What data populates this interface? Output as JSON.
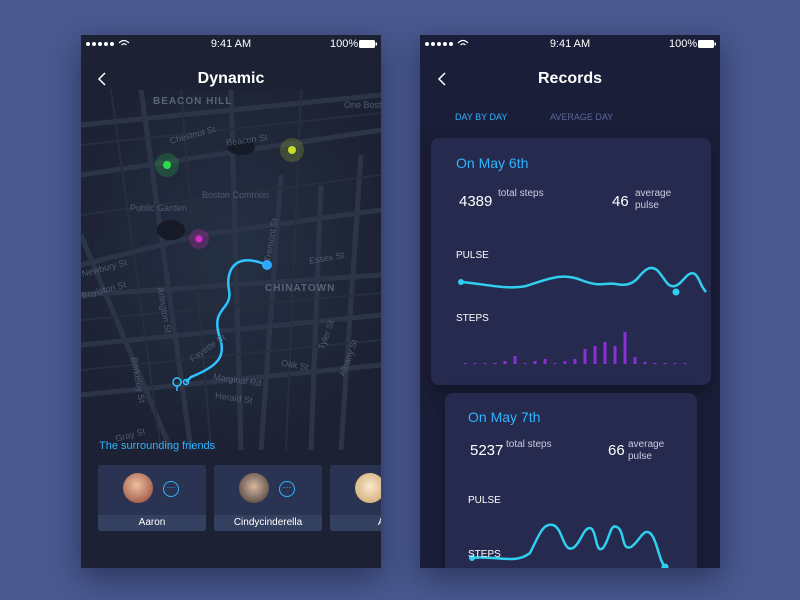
{
  "left_screen": {
    "status_bar": {
      "time": "9:41 AM",
      "battery": "100%"
    },
    "header": {
      "title": "Dynamic"
    },
    "map_labels": [
      "BEACON HILL",
      "One Bosto",
      "Chestnut St",
      "Beacon St",
      "Boston Common",
      "Public Garden",
      "CHINATOWN",
      "Essex St",
      "Tremont St",
      "Fayette St",
      "Marginal Rd",
      "Herald St",
      "Oak St",
      "Tyler St",
      "Albany St",
      "Arlington St",
      "Berkeley St",
      "Boylston St",
      "Newbury St",
      "Gray St"
    ],
    "section_title": "The surrounding friends",
    "friends": [
      {
        "name": "Aaron"
      },
      {
        "name": "Cindycinderella"
      },
      {
        "name": "Ab"
      }
    ]
  },
  "right_screen": {
    "status_bar": {
      "time": "9:41 AM",
      "battery": "100%"
    },
    "header": {
      "title": "Records"
    },
    "tabs": [
      "DAY BY DAY",
      "AVERAGE DAY"
    ],
    "records": [
      {
        "date": "On May 6th",
        "total_steps": 4389,
        "steps_label": "total steps",
        "average_pulse": 46,
        "pulse_label": "average pulse",
        "pulse_title": "PULSE",
        "steps_title": "STEPS",
        "steps": [
          1,
          1,
          1,
          1,
          3,
          8,
          1,
          3,
          5,
          1,
          3,
          5,
          15,
          18,
          22,
          18,
          32,
          7,
          2,
          1,
          1,
          1,
          1
        ]
      },
      {
        "date": "On May 7th",
        "total_steps": 5237,
        "steps_label": "total steps",
        "average_pulse": 66,
        "pulse_label": "average pulse",
        "pulse_title": "PULSE",
        "steps_title": "STEPS"
      }
    ]
  }
}
